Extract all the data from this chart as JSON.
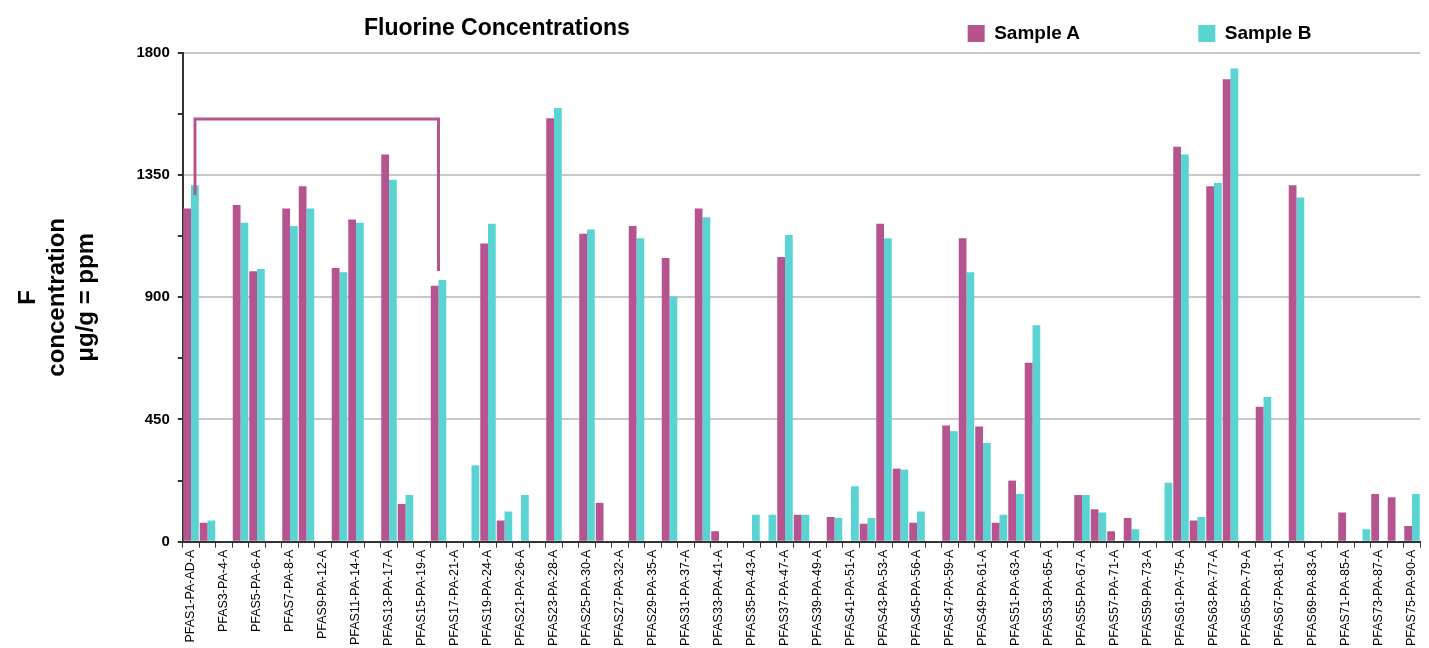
{
  "chart_data": {
    "type": "bar",
    "title": "Fluorine Concentrations",
    "ylabel": "F\nconcentration\nμg/g = ppm",
    "categories": [
      "PFAS1-PA-AD-A",
      null,
      "PFAS3-PA-4-A",
      null,
      "PFAS5-PA-6-A",
      null,
      "PFAS7-PA-8-A",
      null,
      "PFAS9-PA-12-A",
      null,
      "PFAS11-PA-14-A",
      null,
      "PFAS13-PA-17-A",
      null,
      "PFAS15-PA-19-A",
      null,
      "PFAS17-PA-21-A",
      null,
      "PFAS19-PA-24-A",
      null,
      "PFAS21-PA-26-A",
      null,
      "PFAS23-PA-28-A",
      null,
      "PFAS25-PA-30-A",
      null,
      "PFAS27-PA-32-A",
      null,
      "PFAS29-PA-35-A",
      null,
      "PFAS31-PA-37-A",
      null,
      "PFAS33-PA-41-A",
      null,
      "PFAS35-PA-43-A",
      null,
      "PFAS37-PA-47-A",
      null,
      "PFAS39-PA-49-A",
      null,
      "PFAS41-PA-51-A",
      null,
      "PFAS43-PA-53-A",
      null,
      "PFAS45-PA-56-A",
      null,
      "PFAS47-PA-59-A",
      null,
      "PFAS49-PA-61-A",
      null,
      "PFAS51-PA-63-A",
      null,
      "PFAS53-PA-65-A",
      null,
      "PFAS55-PA-67-A",
      null,
      "PFAS57-PA-71-A",
      null,
      "PFAS59-PA-73-A",
      null,
      "PFAS61-PA-75-A",
      null,
      "PFAS63-PA-77-A",
      null,
      "PFAS65-PA-79-A",
      null,
      "PFAS67-PA-81-A",
      null,
      "PFAS69-PA-83-A",
      null,
      "PFAS71-PA-85-A",
      null,
      "PFAS73-PA-87-A",
      null,
      "PFAS75-PA-90-A"
    ],
    "series": [
      {
        "name": "Sample A",
        "color": "#b5548f",
        "values": [
          1227,
          70,
          null,
          1240,
          996,
          null,
          1227,
          1309,
          null,
          1008,
          1187,
          null,
          1426,
          139,
          null,
          943,
          null,
          null,
          1098,
          78,
          null,
          null,
          1560,
          null,
          1134,
          143,
          null,
          1163,
          null,
          1045,
          null,
          1227,
          38,
          null,
          null,
          null,
          1049,
          99,
          null,
          91,
          null,
          66,
          1171,
          269,
          70,
          null,
          428,
          1118,
          424,
          70,
          225,
          659,
          null,
          null,
          172,
          119,
          38,
          87,
          null,
          null,
          1455,
          78,
          1309,
          1703,
          null,
          497,
          null,
          1313,
          null,
          null,
          107,
          null,
          176,
          164,
          58
        ]
      },
      {
        "name": "Sample B",
        "color": "#5ad3d3",
        "values": [
          1313,
          78,
          null,
          1175,
          1004,
          null,
          1163,
          1227,
          null,
          992,
          1175,
          null,
          1333,
          172,
          null,
          964,
          null,
          281,
          1171,
          111,
          172,
          null,
          1597,
          null,
          1150,
          null,
          null,
          1118,
          null,
          903,
          null,
          1195,
          null,
          null,
          99,
          99,
          1130,
          99,
          null,
          87,
          204,
          87,
          1118,
          265,
          111,
          null,
          407,
          992,
          363,
          99,
          176,
          797,
          null,
          null,
          172,
          107,
          null,
          46,
          null,
          217,
          1426,
          91,
          1321,
          1743,
          null,
          533,
          null,
          1268,
          null,
          null,
          null,
          46,
          null,
          null,
          176
        ]
      }
    ],
    "ylim": [
      0,
      1800
    ],
    "yticks": [
      0,
      {
        "value": 225,
        "label": null
      },
      450,
      {
        "value": 675,
        "label": null
      },
      900,
      {
        "value": 1125,
        "label": null
      },
      1350,
      {
        "value": 1575,
        "label": null
      },
      1800
    ],
    "grid": "y",
    "legend": "top"
  }
}
